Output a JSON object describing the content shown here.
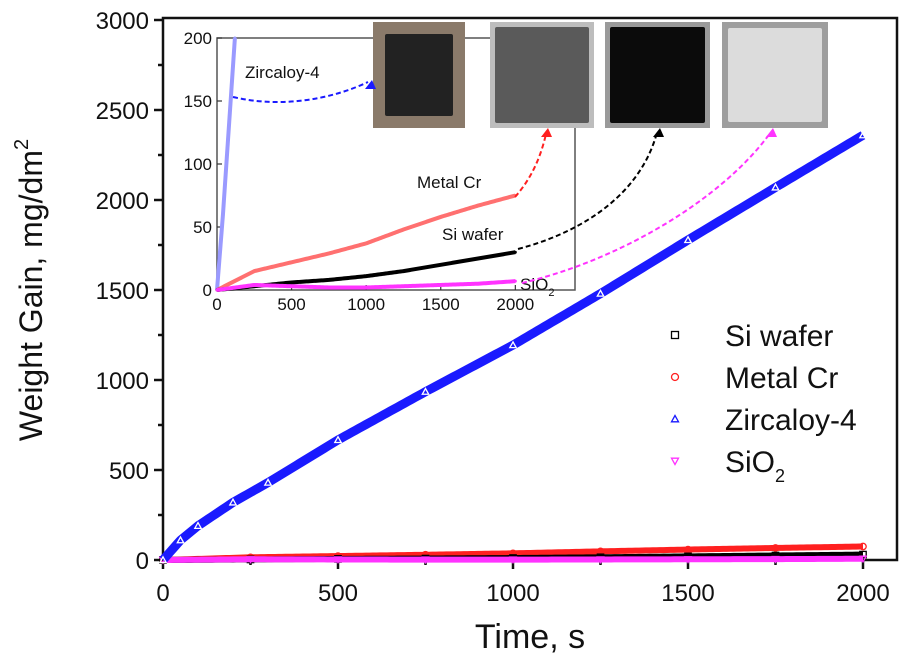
{
  "chart_data": [
    {
      "type": "scatter",
      "role": "main",
      "xlabel": "Time, s",
      "ylabel": "Weight Gain, mg/dm",
      "ylabel_superscript": "2",
      "xlim": [
        0,
        2000
      ],
      "ylim": [
        0,
        3000
      ],
      "xticks": [
        "0",
        "500",
        "1000",
        "1500",
        "2000"
      ],
      "yticks": [
        "0",
        "500",
        "1000",
        "1500",
        "2000",
        "2500",
        "3000"
      ],
      "grid": false,
      "legend_position": "right",
      "series": [
        {
          "name": "Si wafer",
          "name_sub": "",
          "color": "#000000",
          "marker": "square",
          "x": [
            0,
            250,
            500,
            750,
            1000,
            1250,
            1500,
            1750,
            2000
          ],
          "y": [
            0,
            3,
            6,
            8,
            11,
            15,
            20,
            25,
            30
          ]
        },
        {
          "name": "Metal Cr",
          "name_sub": "",
          "color": "#ff2020",
          "marker": "circle",
          "x": [
            0,
            250,
            500,
            750,
            1000,
            1250,
            1500,
            1750,
            2000
          ],
          "y": [
            0,
            15,
            22,
            29,
            37,
            48,
            58,
            67,
            75
          ]
        },
        {
          "name": "Zircaloy-4",
          "name_sub": "",
          "color": "#1a1aff",
          "marker": "triangle-up",
          "x": [
            0,
            50,
            100,
            200,
            300,
            500,
            750,
            1000,
            1250,
            1500,
            1750,
            2000
          ],
          "y": [
            0,
            110,
            190,
            320,
            430,
            667,
            935,
            1194,
            1480,
            1778,
            2070,
            2360
          ]
        },
        {
          "name": "SiO",
          "name_sub": "2",
          "color": "#ff33ff",
          "marker": "triangle-down",
          "x": [
            0,
            250,
            500,
            750,
            1000,
            1250,
            1500,
            1750,
            2000
          ],
          "y": [
            0,
            4,
            3,
            2,
            2,
            3,
            4,
            5,
            7
          ]
        }
      ]
    },
    {
      "type": "scatter",
      "role": "inset",
      "xlim": [
        0,
        2400
      ],
      "ylim": [
        0,
        200
      ],
      "xticks": [
        "0",
        "500",
        "1000",
        "1500",
        "2000"
      ],
      "yticks": [
        "0",
        "50",
        "100",
        "150",
        "200"
      ],
      "annotations": [
        {
          "text": "Zircaloy-4",
          "sub": "",
          "color": "#1a1aff",
          "photo": "dark square sample with metallic rim"
        },
        {
          "text": "Metal Cr",
          "sub": "",
          "color": "#ff2020",
          "photo": "gray oxidized sample"
        },
        {
          "text": "Si wafer",
          "sub": "",
          "color": "#000000",
          "photo": "black sample"
        },
        {
          "text": "SiO",
          "sub": "2",
          "color": "#ff33ff",
          "photo": "light translucent sample"
        }
      ],
      "series": [
        {
          "name": "Zircaloy-4",
          "color": "#9a9aff",
          "x": [
            0,
            20,
            40,
            60,
            80,
            100,
            120
          ],
          "y": [
            0,
            30,
            60,
            95,
            130,
            165,
            200
          ]
        },
        {
          "name": "Metal Cr",
          "color": "#ff7070",
          "x": [
            0,
            250,
            500,
            750,
            1000,
            1250,
            1500,
            1750,
            2000
          ],
          "y": [
            0,
            15,
            22,
            29,
            37,
            48,
            58,
            67,
            75
          ]
        },
        {
          "name": "Si wafer",
          "color": "#000000",
          "x": [
            0,
            250,
            500,
            750,
            1000,
            1250,
            1500,
            1750,
            2000
          ],
          "y": [
            0,
            3,
            6,
            8,
            11,
            15,
            20,
            25,
            30
          ]
        },
        {
          "name": "SiO2",
          "color": "#ff33ff",
          "x": [
            0,
            250,
            500,
            750,
            1000,
            1250,
            1500,
            1750,
            2000
          ],
          "y": [
            0,
            4,
            3,
            2,
            2,
            3,
            4,
            5,
            7
          ]
        }
      ]
    }
  ]
}
